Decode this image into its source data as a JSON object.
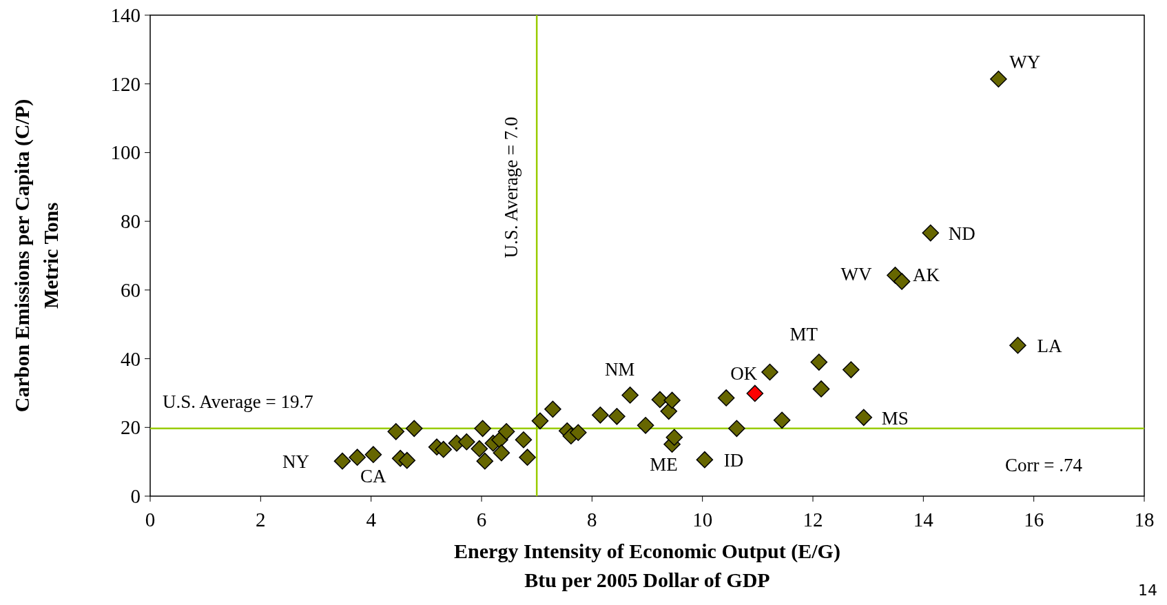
{
  "chart_data": {
    "type": "scatter",
    "xlabel": "Energy Intensity of Economic Output (E/G)\nBtu per 2005 Dollar of GDP",
    "ylabel": "Carbon Emissions per Capita (C/P)\nMetric Tons",
    "xlim": [
      0,
      18
    ],
    "xticks": [
      0,
      2,
      4,
      6,
      8,
      10,
      12,
      14,
      16,
      18
    ],
    "ylim": [
      0,
      140
    ],
    "yticks": [
      0,
      20,
      40,
      60,
      80,
      100,
      120,
      140
    ],
    "marker": "diamond",
    "series": [
      {
        "color": "#666600",
        "x": [
          3.48,
          3.75,
          4.04,
          4.45,
          4.78,
          4.53,
          4.65,
          5.19,
          5.31,
          5.55,
          5.73,
          6.02,
          5.96,
          6.06,
          6.21,
          6.33,
          6.36,
          6.45,
          6.76,
          6.83,
          7.06,
          7.29,
          7.55,
          7.62,
          7.75,
          8.15,
          8.45,
          8.69,
          8.97,
          9.23,
          9.39,
          9.45,
          9.45,
          9.49,
          10.04,
          10.43,
          10.62,
          11.22,
          11.44,
          12.11,
          12.15,
          12.69,
          12.92,
          13.49,
          13.61,
          14.13,
          15.36,
          15.71
        ],
        "values": [
          10.2,
          11.3,
          12.1,
          18.8,
          19.7,
          11.0,
          10.4,
          14.3,
          13.6,
          15.4,
          15.8,
          19.7,
          13.8,
          10.2,
          15.4,
          16.4,
          12.6,
          18.8,
          16.4,
          11.3,
          21.9,
          25.3,
          19.0,
          17.5,
          18.5,
          23.6,
          23.2,
          29.4,
          20.6,
          28.1,
          24.7,
          27.9,
          15.1,
          17.1,
          10.6,
          28.6,
          19.7,
          36.1,
          22.1,
          39.0,
          31.2,
          36.8,
          22.9,
          64.3,
          62.5,
          76.6,
          121.4,
          43.9
        ]
      },
      {
        "color": "#ff0000",
        "x": [
          10.95
        ],
        "values": [
          29.9
        ]
      }
    ],
    "ref_lines": [
      {
        "axis": "x",
        "value": 7.0,
        "label": "U.S. Average = 7.0",
        "color": "#99cc00"
      },
      {
        "axis": "y",
        "value": 19.7,
        "label": "U.S. Average = 19.7",
        "color": "#99cc00"
      }
    ],
    "annotations": [
      "Corr = .74",
      "14",
      {
        "text": "NY",
        "x": 3.48,
        "y": 10.2
      },
      {
        "text": "CA",
        "x": 4.04,
        "y": 12.1
      },
      {
        "text": "NM",
        "x": 8.69,
        "y": 29.4
      },
      {
        "text": "ME",
        "x": 9.45,
        "y": 15.1
      },
      {
        "text": "ID",
        "x": 10.04,
        "y": 10.6
      },
      {
        "text": "OK",
        "x": 10.95,
        "y": 29.9
      },
      {
        "text": "MT",
        "x": 12.11,
        "y": 39.0
      },
      {
        "text": "MS",
        "x": 12.92,
        "y": 22.9
      },
      {
        "text": "WV",
        "x": 13.49,
        "y": 64.3
      },
      {
        "text": "AK",
        "x": 13.61,
        "y": 62.5
      },
      {
        "text": "ND",
        "x": 14.13,
        "y": 76.6
      },
      {
        "text": "WY",
        "x": 15.36,
        "y": 121.4
      },
      {
        "text": "LA",
        "x": 15.71,
        "y": 43.9
      }
    ]
  }
}
